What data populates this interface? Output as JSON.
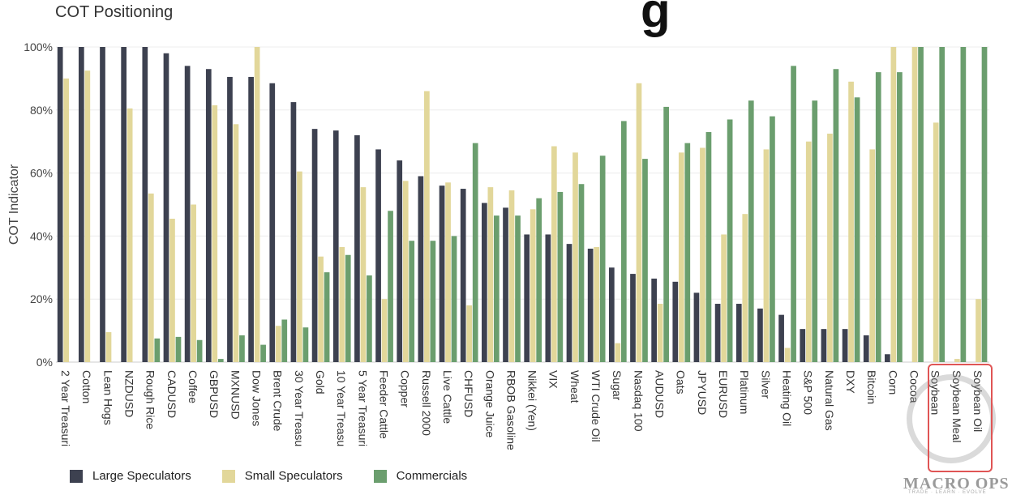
{
  "chart_data": {
    "type": "bar",
    "title": "COT Positioning",
    "ylabel": "COT Indicator",
    "xlabel": "",
    "ylim": [
      0,
      100
    ],
    "yticks": [
      "0%",
      "20%",
      "40%",
      "60%",
      "80%",
      "100%"
    ],
    "categories": [
      "2 Year Treasuri",
      "Cotton",
      "Lean Hogs",
      "NZDUSD",
      "Rough Rice",
      "CADUSD",
      "Coffee",
      "GBPUSD",
      "MXNUSD",
      "Dow Jones",
      "Brent Crude",
      "30 Year Treasu",
      "Gold",
      "10 Year Treasu",
      "5 Year Treasuri",
      "Feeder Cattle",
      "Copper",
      "Russell 2000",
      "Live Cattle",
      "CHFUSD",
      "Orange Juice",
      "RBOB Gasoline",
      "Nikkei (Yen)",
      "VIX",
      "Wheat",
      "WTI Crude Oil",
      "Sugar",
      "Nasdaq 100",
      "AUDUSD",
      "Oats",
      "JPYUSD",
      "EURUSD",
      "Platinum",
      "Silver",
      "Heating Oil",
      "S&P 500",
      "Natural Gas",
      "DXY",
      "Bitcoin",
      "Corn",
      "Cocoa",
      "Soybean",
      "Soybean Meal",
      "Soybean Oil"
    ],
    "series": [
      {
        "name": "Large Speculators",
        "color": "#3d4150",
        "values": [
          100,
          100,
          100,
          100,
          100,
          98,
          94,
          93,
          90.5,
          90.5,
          88.5,
          82.5,
          74,
          73.5,
          72,
          67.5,
          64,
          59,
          56,
          55,
          50.5,
          49,
          40.5,
          40.5,
          37.5,
          36,
          30,
          28,
          26.5,
          25.5,
          22,
          18.5,
          18.5,
          17,
          15,
          10.5,
          10.5,
          10.5,
          8.5,
          2.5,
          0,
          0,
          0,
          0
        ]
      },
      {
        "name": "Small Speculators",
        "color": "#e2d79a",
        "values": [
          90,
          92.5,
          9.5,
          80.5,
          53.5,
          45.5,
          50,
          81.5,
          75.5,
          100,
          11.5,
          60.5,
          33.5,
          36.5,
          55.5,
          20,
          57.5,
          86,
          57,
          18,
          55.5,
          54.5,
          48.5,
          68.5,
          66.5,
          36.5,
          6,
          88.5,
          18.5,
          66.5,
          68,
          40.5,
          47,
          67.5,
          4.5,
          70,
          72.5,
          89,
          67.5,
          100,
          100,
          76,
          1,
          20
        ]
      },
      {
        "name": "Commercials",
        "color": "#6b9e6e",
        "values": [
          0,
          0,
          0,
          0,
          7.5,
          8,
          7,
          1,
          8.5,
          5.5,
          13.5,
          11,
          28.5,
          34,
          27.5,
          48,
          38.5,
          38.5,
          40,
          69.5,
          46.5,
          46.5,
          52,
          54,
          56.5,
          65.5,
          76.5,
          64.5,
          81,
          69.5,
          73,
          77,
          83,
          78,
          94,
          83,
          93,
          84,
          92,
          92,
          100,
          100,
          100,
          100
        ]
      }
    ],
    "legend": "bottom-left"
  },
  "overlay": {
    "big_glyph": "g",
    "logo_text": "MACRO OPS",
    "logo_sub": "TRADE · LEARN · EVOLVE"
  }
}
